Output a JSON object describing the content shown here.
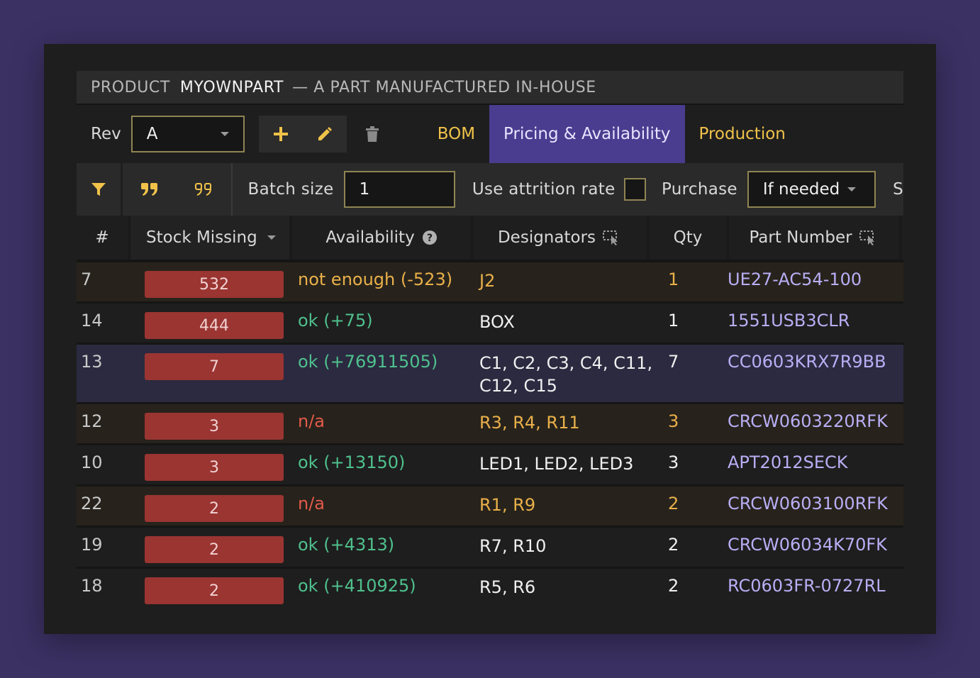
{
  "title": {
    "prefix": "PRODUCT",
    "name": "MYOWNPART",
    "description": "— A PART MANUFACTURED IN-HOUSE"
  },
  "toolbar": {
    "rev_label": "Rev",
    "rev_value": "A",
    "tabs": [
      {
        "label": "BOM",
        "active": false
      },
      {
        "label": "Pricing & Availability",
        "active": true
      },
      {
        "label": "Production",
        "active": false
      }
    ]
  },
  "options": {
    "batch_label": "Batch size",
    "batch_value": "1",
    "attrition_label": "Use attrition rate",
    "purchase_label": "Purchase",
    "purchase_value": "If needed",
    "overflow_label": "S"
  },
  "table": {
    "headers": {
      "num": "#",
      "stock": "Stock Missing",
      "avail": "Availability",
      "des": "Designators",
      "qty": "Qty",
      "part": "Part Number"
    },
    "rows": [
      {
        "num": "7",
        "stock": "532",
        "avail": "not enough (-523)",
        "des": "J2",
        "qty": "1",
        "part": "UE27-AC54-100",
        "state": "warn"
      },
      {
        "num": "14",
        "stock": "444",
        "avail": "ok (+75)",
        "des": "BOX",
        "qty": "1",
        "part": "1551USB3CLR",
        "state": "ok"
      },
      {
        "num": "13",
        "stock": "7",
        "avail": "ok (+76911505)",
        "des": "C1, C2, C3, C4, C11, C12, C15",
        "qty": "7",
        "part": "CC0603KRX7R9BB",
        "state": "selected"
      },
      {
        "num": "12",
        "stock": "3",
        "avail": "n/a",
        "des": "R3, R4, R11",
        "qty": "3",
        "part": "CRCW0603220RFK",
        "state": "na"
      },
      {
        "num": "10",
        "stock": "3",
        "avail": "ok (+13150)",
        "des": "LED1, LED2, LED3",
        "qty": "3",
        "part": "APT2012SECK",
        "state": "ok"
      },
      {
        "num": "22",
        "stock": "2",
        "avail": "n/a",
        "des": "R1, R9",
        "qty": "2",
        "part": "CRCW0603100RFK",
        "state": "na"
      },
      {
        "num": "19",
        "stock": "2",
        "avail": "ok (+4313)",
        "des": "R7, R10",
        "qty": "2",
        "part": "CRCW06034K70FK",
        "state": "ok"
      },
      {
        "num": "18",
        "stock": "2",
        "avail": "ok (+410925)",
        "des": "R5, R6",
        "qty": "2",
        "part": "RC0603FR-0727RL",
        "state": "ok"
      }
    ]
  },
  "colors": {
    "accent_tab": "#4a3d8f",
    "stock_badge": "#9a3532",
    "ok": "#4fc08d",
    "warn": "#eab04a",
    "na": "#e35a4a",
    "part": "#b9aef5"
  }
}
